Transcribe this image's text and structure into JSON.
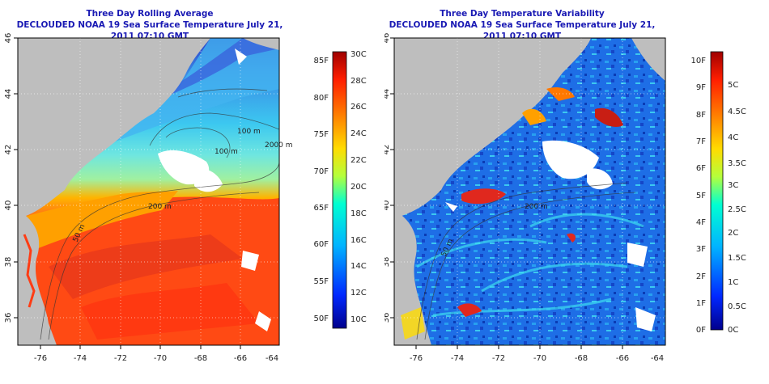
{
  "left_panel": {
    "title1": "Three Day Rolling Average",
    "title2": "DECLOUDED NOAA 19 Sea Surface Temperature July 21, 2011 07:10 GMT",
    "lon_ticks": [
      "-76",
      "-74",
      "-72",
      "-70",
      "-68",
      "-66",
      "-64"
    ],
    "lat_ticks": [
      "36",
      "38",
      "40",
      "42",
      "44",
      "46"
    ],
    "contours": [
      "50 m",
      "200 m",
      "100 m",
      "100 m",
      "2000 m"
    ],
    "colorbar_f": [
      "85F",
      "80F",
      "75F",
      "70F",
      "65F",
      "60F",
      "55F",
      "50F"
    ],
    "colorbar_c": [
      "30C",
      "28C",
      "26C",
      "24C",
      "22C",
      "20C",
      "18C",
      "16C",
      "14C",
      "12C",
      "10C"
    ]
  },
  "right_panel": {
    "title1": "Three Day Temperature Variability",
    "title2": "DECLOUDED NOAA 19 Sea Surface Temperature July 21, 2011 07:10 GMT",
    "lon_ticks": [
      "-76",
      "-74",
      "-72",
      "-70",
      "-68",
      "-66",
      "-64"
    ],
    "lat_ticks": [
      "36",
      "38",
      "40",
      "42",
      "44",
      "46"
    ],
    "contours": [
      "50 m",
      "200 m"
    ],
    "colorbar_f": [
      "10F",
      "9F",
      "8F",
      "7F",
      "6F",
      "5F",
      "4F",
      "3F",
      "2F",
      "1F",
      "0F"
    ],
    "colorbar_c": [
      "5C",
      "4.5C",
      "4C",
      "3.5C",
      "3C",
      "2.5C",
      "2C",
      "1.5C",
      "1C",
      "0.5C",
      "0C"
    ]
  },
  "colors": {
    "title": "#1a1ab4",
    "land": "#bebebe",
    "cloud": "#ffffff"
  }
}
